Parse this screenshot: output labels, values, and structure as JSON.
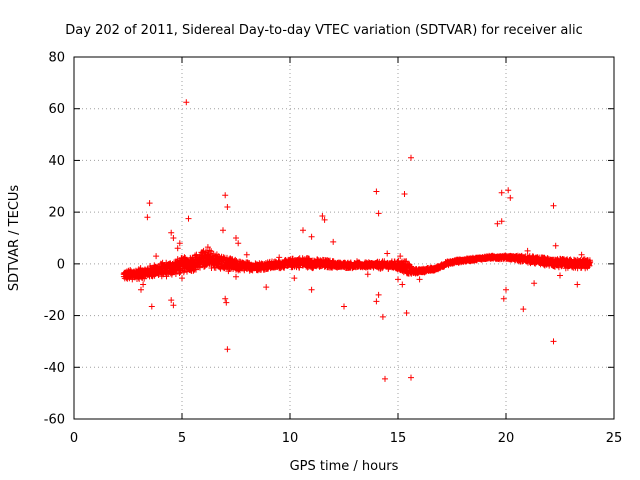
{
  "chart_data": {
    "type": "scatter",
    "title": "Day 202 of 2011, Sidereal Day-to-day VTEC variation (SDTVAR) for receiver alic",
    "xlabel": "GPS time / hours",
    "ylabel": "SDTVAR / TECUs",
    "xlim": [
      0,
      25
    ],
    "ylim": [
      -60,
      80
    ],
    "xticks": [
      0,
      5,
      10,
      15,
      20,
      25
    ],
    "yticks": [
      -60,
      -40,
      -20,
      0,
      20,
      40,
      60,
      80
    ],
    "xtick_labels": [
      "0",
      "5",
      "10",
      "15",
      "20",
      "25"
    ],
    "ytick_labels": [
      "-60",
      "-40",
      "-20",
      "0",
      "20",
      "40",
      "60",
      "80"
    ],
    "grid": true,
    "legend": "none",
    "marker": "plus",
    "color": "#ff0000",
    "dense_band": [
      [
        2.3,
        -4.5,
        1.8
      ],
      [
        2.8,
        -4.0,
        2.0
      ],
      [
        3.3,
        -3.5,
        2.2
      ],
      [
        3.8,
        -2.5,
        2.5
      ],
      [
        4.3,
        -2.0,
        3.0
      ],
      [
        4.8,
        -1.0,
        3.0
      ],
      [
        5.3,
        0.0,
        3.0
      ],
      [
        5.8,
        1.0,
        3.5
      ],
      [
        6.3,
        2.0,
        3.5
      ],
      [
        6.8,
        0.5,
        3.0
      ],
      [
        7.3,
        -0.5,
        2.5
      ],
      [
        7.8,
        -1.0,
        1.8
      ],
      [
        8.5,
        -1.0,
        1.5
      ],
      [
        9.2,
        -0.5,
        1.5
      ],
      [
        9.8,
        0.0,
        1.5
      ],
      [
        10.3,
        0.5,
        2.0
      ],
      [
        10.8,
        0.5,
        2.0
      ],
      [
        11.3,
        0.0,
        1.8
      ],
      [
        11.8,
        0.0,
        1.5
      ],
      [
        12.3,
        -0.5,
        1.2
      ],
      [
        12.8,
        -0.5,
        1.2
      ],
      [
        13.3,
        -0.5,
        1.0
      ],
      [
        13.8,
        -0.5,
        1.2
      ],
      [
        14.3,
        -0.5,
        1.5
      ],
      [
        14.8,
        -0.5,
        1.5
      ],
      [
        15.3,
        -1.0,
        2.5
      ],
      [
        15.5,
        -2.0,
        3.0
      ],
      [
        15.7,
        -3.0,
        1.0
      ],
      [
        16.2,
        -2.5,
        0.8
      ],
      [
        16.7,
        -2.0,
        0.7
      ],
      [
        17.2,
        0.0,
        0.8
      ],
      [
        17.7,
        1.0,
        0.7
      ],
      [
        18.2,
        1.5,
        0.6
      ],
      [
        18.7,
        2.0,
        0.6
      ],
      [
        19.2,
        2.5,
        0.6
      ],
      [
        19.7,
        2.5,
        0.7
      ],
      [
        20.2,
        2.5,
        0.8
      ],
      [
        20.7,
        2.0,
        1.2
      ],
      [
        21.2,
        1.5,
        1.5
      ],
      [
        21.7,
        1.0,
        1.5
      ],
      [
        22.2,
        0.5,
        1.8
      ],
      [
        22.7,
        0.0,
        1.8
      ],
      [
        23.2,
        0.0,
        1.8
      ],
      [
        23.7,
        0.0,
        1.8
      ],
      [
        23.9,
        0.0,
        1.5
      ]
    ],
    "outliers": [
      [
        5.2,
        62.5
      ],
      [
        15.6,
        41.0
      ],
      [
        3.5,
        23.5
      ],
      [
        3.4,
        18.0
      ],
      [
        5.3,
        17.5
      ],
      [
        7.0,
        26.5
      ],
      [
        7.1,
        22.0
      ],
      [
        6.9,
        13.0
      ],
      [
        14.0,
        28.0
      ],
      [
        14.1,
        19.5
      ],
      [
        15.3,
        27.0
      ],
      [
        19.8,
        27.5
      ],
      [
        20.1,
        28.5
      ],
      [
        20.2,
        25.5
      ],
      [
        19.6,
        15.5
      ],
      [
        19.8,
        16.5
      ],
      [
        22.2,
        22.5
      ],
      [
        11.5,
        18.5
      ],
      [
        11.6,
        17.0
      ],
      [
        10.6,
        13.0
      ],
      [
        11.0,
        10.5
      ],
      [
        12.0,
        8.5
      ],
      [
        4.5,
        12.0
      ],
      [
        4.6,
        10.0
      ],
      [
        7.5,
        10.0
      ],
      [
        7.6,
        8.0
      ],
      [
        3.6,
        -16.5
      ],
      [
        4.6,
        -16.0
      ],
      [
        4.5,
        -14.0
      ],
      [
        7.0,
        -13.5
      ],
      [
        7.05,
        -15.0
      ],
      [
        7.5,
        -5.0
      ],
      [
        8.9,
        -9.0
      ],
      [
        10.2,
        -5.5
      ],
      [
        11.0,
        -10.0
      ],
      [
        12.5,
        -16.5
      ],
      [
        14.3,
        -20.5
      ],
      [
        14.1,
        -12.0
      ],
      [
        14.0,
        -14.5
      ],
      [
        15.4,
        -19.0
      ],
      [
        15.2,
        -8.0
      ],
      [
        15.0,
        -6.0
      ],
      [
        19.9,
        -13.5
      ],
      [
        20.0,
        -10.0
      ],
      [
        20.8,
        -17.5
      ],
      [
        22.2,
        -30.0
      ],
      [
        23.3,
        -8.0
      ],
      [
        7.1,
        -33.0
      ],
      [
        14.4,
        -44.5
      ],
      [
        15.6,
        -44.0
      ],
      [
        5.0,
        -5.5
      ],
      [
        2.7,
        -6.0
      ],
      [
        3.0,
        -5.5
      ],
      [
        9.5,
        2.5
      ],
      [
        13.1,
        1.0
      ],
      [
        13.6,
        -4.0
      ],
      [
        14.5,
        4.0
      ],
      [
        15.1,
        3.0
      ],
      [
        21.0,
        5.0
      ],
      [
        22.3,
        7.0
      ],
      [
        21.3,
        -7.5
      ],
      [
        22.5,
        -4.5
      ],
      [
        23.5,
        3.5
      ],
      [
        16.0,
        -6.0
      ],
      [
        8.0,
        3.5
      ],
      [
        6.0,
        5.0
      ],
      [
        6.2,
        6.5
      ],
      [
        4.8,
        6.0
      ],
      [
        4.9,
        8.0
      ],
      [
        3.8,
        3.0
      ],
      [
        3.2,
        -8.0
      ],
      [
        3.1,
        -10.0
      ]
    ]
  }
}
